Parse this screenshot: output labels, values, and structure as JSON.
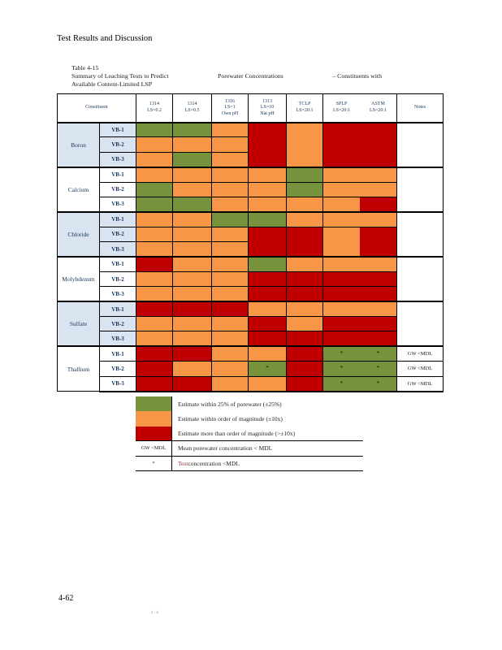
{
  "page": {
    "section_header": "Test Results and Discussion",
    "footer_page_number": "4-62",
    "footer_stamp": "4 . 4"
  },
  "colors": {
    "green": "#76923C",
    "orange": "#F79646",
    "red": "#C00000",
    "shade": "#DAE3F0",
    "legend_test_word": "#963634"
  },
  "table": {
    "title_line1": "Table 4-15",
    "title_line2_parts": [
      "Summary of Leaching Tests to Predict",
      "Porewater Concentrations",
      "–  Constituents with"
    ],
    "title_line3": "Available Content-Limited LSP",
    "constituent_header": "Constituent",
    "notes_header": "Notes",
    "columns": [
      {
        "lines": [
          "1314",
          "LS=0.2"
        ]
      },
      {
        "lines": [
          "1314",
          "LS=0.5"
        ]
      },
      {
        "lines": [
          "1316",
          "LS=1",
          "Own pH"
        ]
      },
      {
        "lines": [
          "1313",
          "LS=10",
          "Nat pH"
        ]
      },
      {
        "lines": [
          "TCLP",
          "LS=20:1"
        ]
      },
      {
        "lines": [
          "SPLP",
          "LS=20:1"
        ]
      },
      {
        "lines": [
          "ASTM",
          "LS=20:1"
        ]
      }
    ],
    "legend_meaning": {
      "green": "Estimate within 25% of porewater (±25%)",
      "orange": "Estimate within order of magnitude (±10x)",
      "red": "Estimate more than order of magnitude (>±10x)"
    },
    "groups": [
      {
        "name": "Boron",
        "shaded": true,
        "merge": {
          "start_row": 0,
          "span": 3,
          "cols": [
            3,
            4,
            5,
            6
          ]
        },
        "note": {
          "type": "merged",
          "text": ""
        },
        "rows": [
          {
            "label": "VB-1",
            "cells": [
              "green",
              "green",
              "orange",
              "red",
              "orange",
              "red",
              "red"
            ]
          },
          {
            "label": "VB-2",
            "cells": [
              "orange",
              "orange",
              "orange",
              null,
              null,
              null,
              null
            ]
          },
          {
            "label": "VB-3",
            "cells": [
              "orange",
              "green",
              "orange",
              null,
              null,
              null,
              null
            ]
          }
        ]
      },
      {
        "name": "Calcium",
        "shaded": false,
        "merge": null,
        "note": {
          "type": "merged",
          "text": ""
        },
        "rows": [
          {
            "label": "VB-1",
            "cells": [
              "orange",
              "orange",
              "orange",
              "orange",
              "green",
              "orange",
              "orange"
            ]
          },
          {
            "label": "VB-2",
            "cells": [
              "green",
              "orange",
              "orange",
              "orange",
              "green",
              "orange",
              "orange"
            ]
          },
          {
            "label": "VB-3",
            "cells": [
              "green",
              "green",
              "orange",
              "orange",
              "orange",
              "orange",
              "red"
            ]
          }
        ]
      },
      {
        "name": "Chloride",
        "shaded": true,
        "merge": {
          "start_row": 1,
          "span": 2,
          "cols": [
            3,
            4,
            5,
            6
          ]
        },
        "note": {
          "type": "merged",
          "text": ""
        },
        "rows": [
          {
            "label": "VB-1",
            "cells": [
              "orange",
              "orange",
              "green",
              "green",
              "orange",
              "orange",
              "orange"
            ]
          },
          {
            "label": "VB-2",
            "cells": [
              "orange",
              "orange",
              "orange",
              "red",
              "red",
              "orange",
              "red"
            ]
          },
          {
            "label": "VB-3",
            "cells": [
              "orange",
              "orange",
              "orange",
              null,
              null,
              null,
              null
            ]
          }
        ]
      },
      {
        "name": "Molybdenum",
        "shaded": false,
        "merge": null,
        "note": {
          "type": "merged",
          "text": ""
        },
        "rows": [
          {
            "label": "VB-1",
            "cells": [
              "red",
              "orange",
              "orange",
              "green",
              "orange",
              "orange",
              "orange"
            ]
          },
          {
            "label": "VB-2",
            "cells": [
              "orange",
              "orange",
              "orange",
              "red",
              "red",
              "red",
              "red"
            ]
          },
          {
            "label": "VB-3",
            "cells": [
              "orange",
              "orange",
              "orange",
              "red",
              "red",
              "red",
              "red"
            ]
          }
        ]
      },
      {
        "name": "Sulfate",
        "shaded": true,
        "merge": null,
        "note": {
          "type": "merged",
          "text": ""
        },
        "rows": [
          {
            "label": "VB-1",
            "cells": [
              "red",
              "red",
              "red",
              "orange",
              "orange",
              "orange",
              "orange"
            ]
          },
          {
            "label": "VB-2",
            "cells": [
              "orange",
              "orange",
              "orange",
              "red",
              "orange",
              "red",
              "red"
            ]
          },
          {
            "label": "VB-3",
            "cells": [
              "orange",
              "orange",
              "orange",
              "red",
              "red",
              "red",
              "red"
            ]
          }
        ]
      },
      {
        "name": "Thallium",
        "shaded": false,
        "merge": null,
        "note": {
          "type": "per_row",
          "texts": [
            "GW <MDL",
            "GW <MDL",
            "GW <MDL"
          ]
        },
        "rows": [
          {
            "label": "VB-1",
            "cells": [
              "red",
              "red",
              "orange",
              "orange",
              "red",
              "green*",
              "green*"
            ]
          },
          {
            "label": "VB-2",
            "cells": [
              "red",
              "orange",
              "orange",
              "green*",
              "red",
              "green*",
              "green*"
            ]
          },
          {
            "label": "VB-3",
            "cells": [
              "red",
              "red",
              "orange",
              "orange",
              "red",
              "green*",
              "green*"
            ]
          }
        ]
      }
    ]
  },
  "legend": {
    "rows": [
      {
        "swatch": "green",
        "label": null,
        "parts": [
          {
            "t": "Estimate within 25% of porewater (±25%)"
          }
        ],
        "ruled": false
      },
      {
        "swatch": "orange",
        "label": null,
        "parts": [
          {
            "t": "Estimate within order of magnitude (±10x)"
          }
        ],
        "ruled": false
      },
      {
        "swatch": "red",
        "label": null,
        "parts": [
          {
            "t": "Estimate more than order of magnitude (>±10x)"
          }
        ],
        "ruled": true
      },
      {
        "swatch": null,
        "label": "GW <MDL",
        "parts": [
          {
            "t": "Mean porewater concentration < MDL"
          }
        ],
        "ruled": true
      },
      {
        "swatch": null,
        "label": "*",
        "parts": [
          {
            "t": "Test",
            "colored": true
          },
          {
            "t": " concentration <MDL"
          }
        ],
        "ruled": true
      }
    ]
  }
}
